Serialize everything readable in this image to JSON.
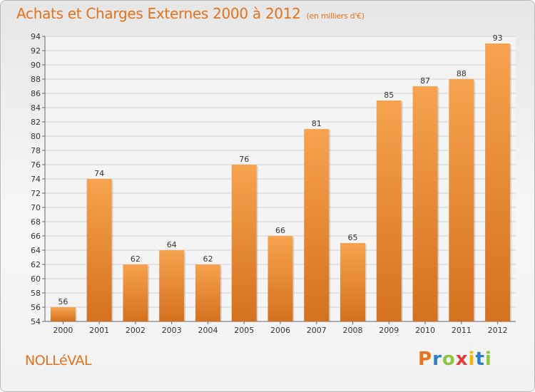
{
  "header": {
    "title": "Achats et Charges Externes 2000 à 2012",
    "subtitle": "(en milliers d'€)"
  },
  "footer": {
    "commune": "NOLLéVAL",
    "brand_letters": [
      "P",
      "r",
      "o",
      "x",
      "i",
      "t",
      "i"
    ],
    "brand_colors": [
      "#e8731c",
      "#2c7fc7",
      "#8ec63f",
      "#e23b3b",
      "#f2b705",
      "#2c7fc7",
      "#8ec63f"
    ]
  },
  "colors": {
    "bar_top": "#f7a34f",
    "bar_bottom": "#d4711f",
    "accent": "#e2721e"
  },
  "chart_data": {
    "type": "bar",
    "title": "Achats et Charges Externes 2000 à 2012",
    "subtitle": "(en milliers d'€)",
    "categories": [
      "2000",
      "2001",
      "2002",
      "2003",
      "2004",
      "2005",
      "2006",
      "2007",
      "2008",
      "2009",
      "2010",
      "2011",
      "2012"
    ],
    "values": [
      56,
      74,
      62,
      64,
      62,
      76,
      66,
      81,
      65,
      85,
      87,
      88,
      93
    ],
    "ylim": [
      54,
      94
    ],
    "yticks": [
      54,
      56,
      58,
      60,
      62,
      64,
      66,
      68,
      70,
      72,
      74,
      76,
      78,
      80,
      82,
      84,
      86,
      88,
      90,
      92,
      94
    ],
    "grid": true,
    "legend": "none"
  }
}
